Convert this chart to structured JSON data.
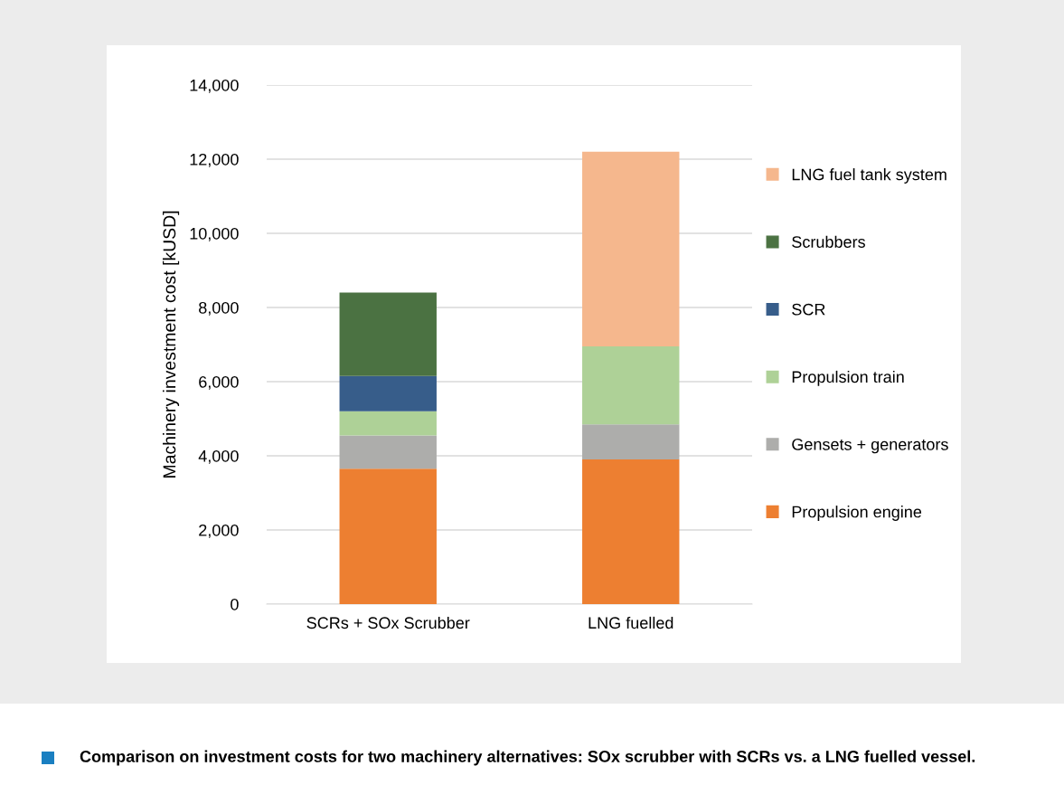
{
  "chart_data": {
    "type": "bar",
    "stacked": true,
    "ylabel": "Machinery investment cost [kUSD]",
    "categories": [
      "SCRs + SOx Scrubber",
      "LNG fuelled"
    ],
    "series": [
      {
        "name": "Propulsion engine",
        "color": "#ed7f31",
        "values": [
          3650,
          3900
        ]
      },
      {
        "name": "Gensets + generators",
        "color": "#adadab",
        "values": [
          900,
          950
        ]
      },
      {
        "name": "Propulsion train",
        "color": "#aed197",
        "values": [
          650,
          2100
        ]
      },
      {
        "name": "SCR",
        "color": "#375d8a",
        "values": [
          950,
          null
        ]
      },
      {
        "name": "Scrubbers",
        "color": "#4b7242",
        "values": [
          2250,
          null
        ]
      },
      {
        "name": "LNG fuel tank system",
        "color": "#f5b78d",
        "values": [
          null,
          5250
        ]
      }
    ],
    "ylim": [
      0,
      14000
    ],
    "yticks": [
      {
        "value": 0,
        "label": "0"
      },
      {
        "value": 2000,
        "label": "2,000"
      },
      {
        "value": 4000,
        "label": "4,000"
      },
      {
        "value": 6000,
        "label": "6,000"
      },
      {
        "value": 8000,
        "label": "8,000"
      },
      {
        "value": 10000,
        "label": "10,000"
      },
      {
        "value": 12000,
        "label": "12,000"
      },
      {
        "value": 14000,
        "label": "14,000"
      }
    ],
    "grid": "y",
    "legend": "right",
    "annotations": [
      "Comparison on investment costs for two machinery alternatives: SOx scrubber with SCRs vs. a LNG fuelled vessel."
    ]
  }
}
